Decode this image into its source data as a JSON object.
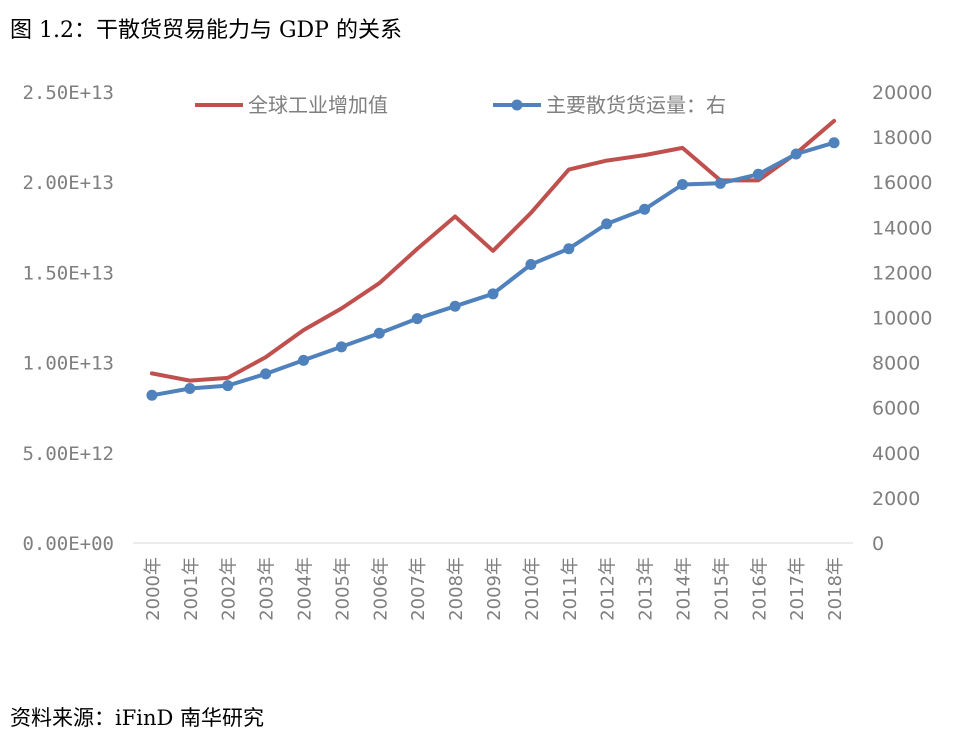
{
  "title": "图 1.2：干散货贸易能力与 GDP 的关系",
  "source": "资料来源：iFinD  南华研究",
  "colors": {
    "industry": "#c0504d",
    "bulk": "#4f81bd",
    "axis_text": "#7f7f7f"
  },
  "chart_data": {
    "type": "line",
    "categories": [
      "2000年",
      "2001年",
      "2002年",
      "2003年",
      "2004年",
      "2005年",
      "2006年",
      "2007年",
      "2008年",
      "2009年",
      "2010年",
      "2011年",
      "2012年",
      "2013年",
      "2014年",
      "2015年",
      "2016年",
      "2017年",
      "2018年"
    ],
    "left_axis": {
      "min": 0,
      "max": 25000000000000,
      "tick_labels": [
        "0.00E+00",
        "5.00E+12",
        "1.00E+13",
        "1.50E+13",
        "2.00E+13",
        "2.50E+13"
      ]
    },
    "right_axis": {
      "min": 0,
      "max": 20000,
      "tick_labels": [
        "0",
        "2000",
        "4000",
        "6000",
        "8000",
        "10000",
        "12000",
        "14000",
        "16000",
        "18000",
        "20000"
      ]
    },
    "series": [
      {
        "name": "全球工业增加值",
        "axis": "left",
        "marker": false,
        "values": [
          9400000000000.0,
          9000000000000.0,
          9150000000000.0,
          10300000000000.0,
          11800000000000.0,
          13000000000000.0,
          14400000000000.0,
          16300000000000.0,
          18100000000000.0,
          16200000000000.0,
          18300000000000.0,
          20700000000000.0,
          21200000000000.0,
          21500000000000.0,
          21900000000000.0,
          20100000000000.0,
          20100000000000.0,
          21600000000000.0,
          23400000000000.0
        ]
      },
      {
        "name": "主要散货货运量：右",
        "axis": "right",
        "marker": true,
        "values": [
          6550,
          6850,
          6980,
          7500,
          8100,
          8700,
          9300,
          9950,
          10500,
          11050,
          12350,
          13050,
          14150,
          14800,
          15900,
          15950,
          16350,
          17250,
          17750
        ]
      }
    ],
    "legend": "top",
    "grid": false
  }
}
